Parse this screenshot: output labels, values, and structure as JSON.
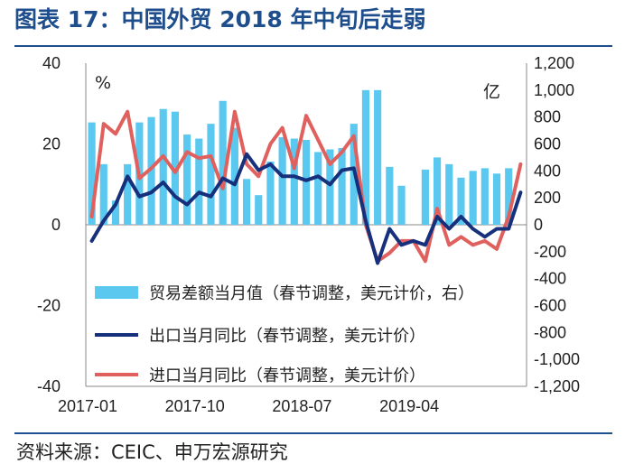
{
  "header": {
    "title": "图表 17：中国外贸 2018 年中旬后走弱",
    "source": "资料来源：CEIC、申万宏源研究"
  },
  "colors": {
    "bars": "#5bc8f0",
    "export_line": "#16307c",
    "import_line": "#e0605e",
    "title": "#1f4e8c"
  },
  "chart_data": {
    "type": "bar+line",
    "x_tick_labels": [
      "2017-01",
      "2017-10",
      "2018-07",
      "2019-04"
    ],
    "x_tick_indices": [
      0,
      9,
      18,
      27
    ],
    "months": [
      "2017-01",
      "2017-02",
      "2017-03",
      "2017-04",
      "2017-05",
      "2017-06",
      "2017-07",
      "2017-08",
      "2017-09",
      "2017-10",
      "2017-11",
      "2017-12",
      "2018-01",
      "2018-02",
      "2018-03",
      "2018-04",
      "2018-05",
      "2018-06",
      "2018-07",
      "2018-08",
      "2018-09",
      "2018-10",
      "2018-11",
      "2018-12",
      "2019-01",
      "2019-02",
      "2019-03",
      "2019-04",
      "2019-05",
      "2019-06",
      "2019-07",
      "2019-08",
      "2019-09",
      "2019-10",
      "2019-11",
      "2019-12",
      "2020-01"
    ],
    "left_axis": {
      "unit": "%",
      "ylim": [
        -40,
        40
      ],
      "ticks": [
        -40,
        -20,
        0,
        20,
        40
      ]
    },
    "right_axis": {
      "unit": "亿",
      "ylim": [
        -1200,
        1200
      ],
      "ticks": [
        -1200,
        -1000,
        -800,
        -600,
        -400,
        -200,
        0,
        200,
        400,
        600,
        800,
        1000,
        1200
      ]
    },
    "legend_position": "bottom-left",
    "series": [
      {
        "name": "贸易差额当月值（春节调整，美元计价，右）",
        "kind": "bar",
        "axis": "right",
        "values": [
          760,
          450,
          180,
          450,
          760,
          800,
          860,
          840,
          670,
          640,
          750,
          920,
          720,
          340,
          220,
          470,
          650,
          640,
          630,
          540,
          560,
          570,
          750,
          1000,
          1000,
          430,
          290,
          0,
          410,
          500,
          450,
          350,
          400,
          420,
          380,
          420,
          0
        ]
      },
      {
        "name": "出口当月同比（春节调整，美元计价）",
        "kind": "line",
        "axis": "left",
        "values": [
          -4,
          1,
          5,
          12,
          7,
          8,
          10.5,
          7,
          5,
          8,
          7,
          11.5,
          10,
          17.5,
          13.5,
          15,
          12,
          12,
          11,
          12,
          10,
          13.5,
          14,
          1,
          -9.5,
          -1,
          -5,
          -4,
          -5,
          2,
          -1,
          2,
          -1,
          -3,
          -1,
          -1,
          8
        ]
      },
      {
        "name": "进口当月同比（春节调整，美元计价）",
        "kind": "line",
        "axis": "left",
        "values": [
          2,
          25,
          22.5,
          28,
          11.5,
          14,
          17,
          13,
          18,
          16.5,
          17,
          9,
          28,
          15,
          12,
          20,
          24,
          14,
          27,
          21,
          15,
          18,
          22,
          0,
          -9,
          -7,
          -4,
          -4,
          -9,
          4,
          -5,
          -3,
          -5,
          -4,
          -6,
          2,
          15
        ]
      }
    ]
  }
}
